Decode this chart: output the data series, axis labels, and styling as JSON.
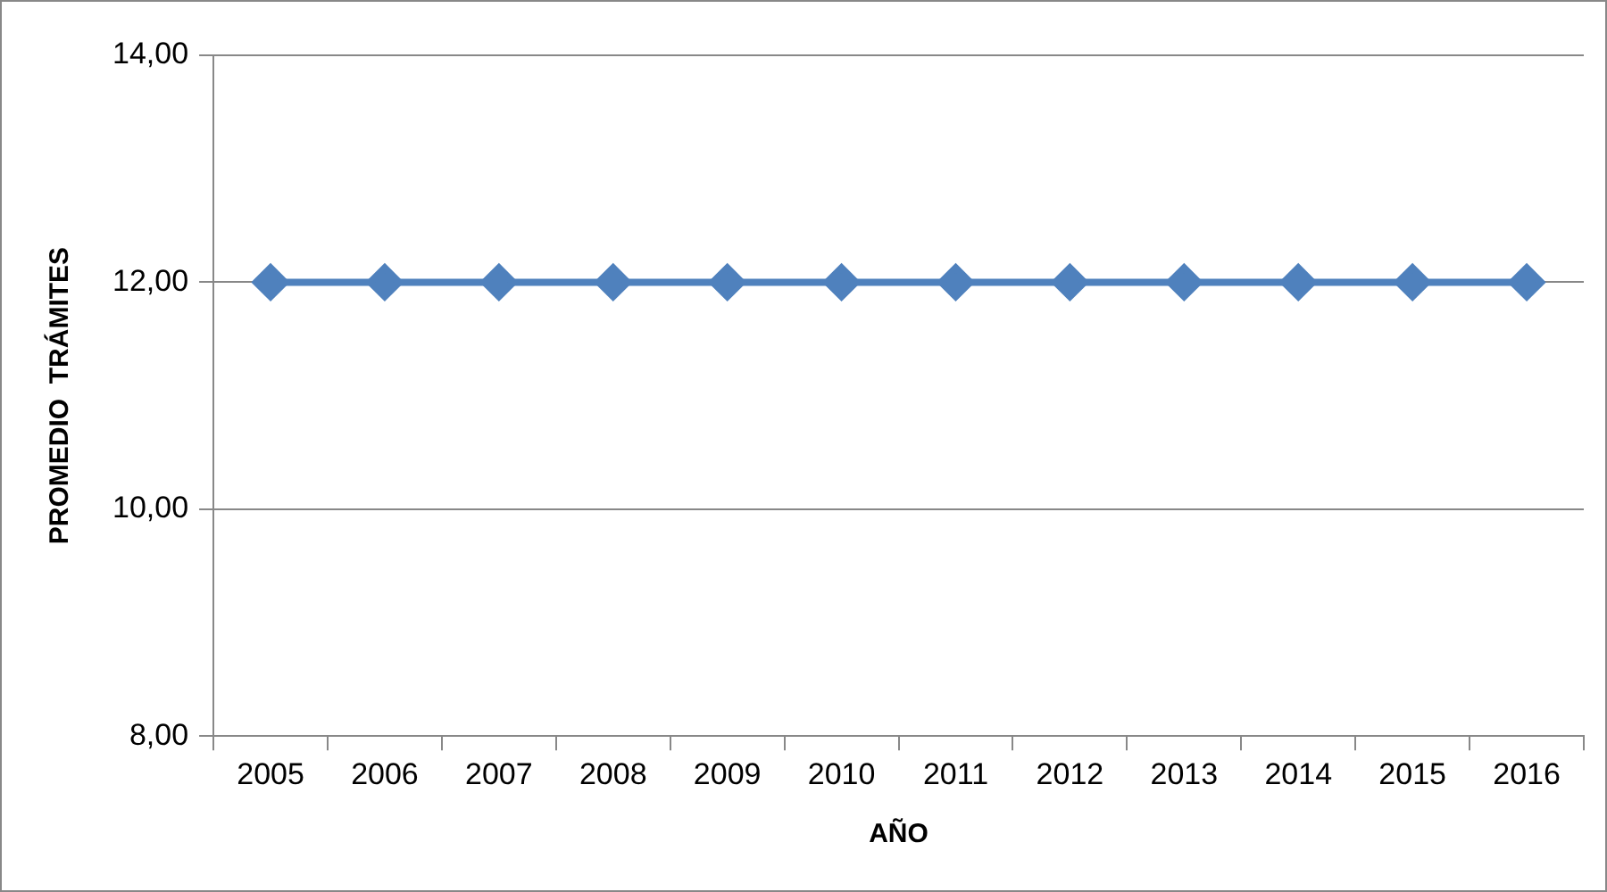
{
  "chart_data": {
    "type": "line",
    "xlabel": "AÑO",
    "ylabel": "PROMEDIO  TRÁMITES",
    "categories": [
      "2005",
      "2006",
      "2007",
      "2008",
      "2009",
      "2010",
      "2011",
      "2012",
      "2013",
      "2014",
      "2015",
      "2016"
    ],
    "series": [
      {
        "color": "#4f81bd",
        "values": [
          12,
          12,
          12,
          12,
          12,
          12,
          12,
          12,
          12,
          12,
          12,
          12
        ]
      }
    ],
    "ylim": [
      8,
      14
    ],
    "yticks": [
      {
        "value": 8,
        "label": "8,00"
      },
      {
        "value": 10,
        "label": "10,00"
      },
      {
        "value": 12,
        "label": "12,00"
      },
      {
        "value": 14,
        "label": "14,00"
      }
    ],
    "grid": "y",
    "legend": false,
    "marker": "diamond",
    "line_style": "solid"
  }
}
